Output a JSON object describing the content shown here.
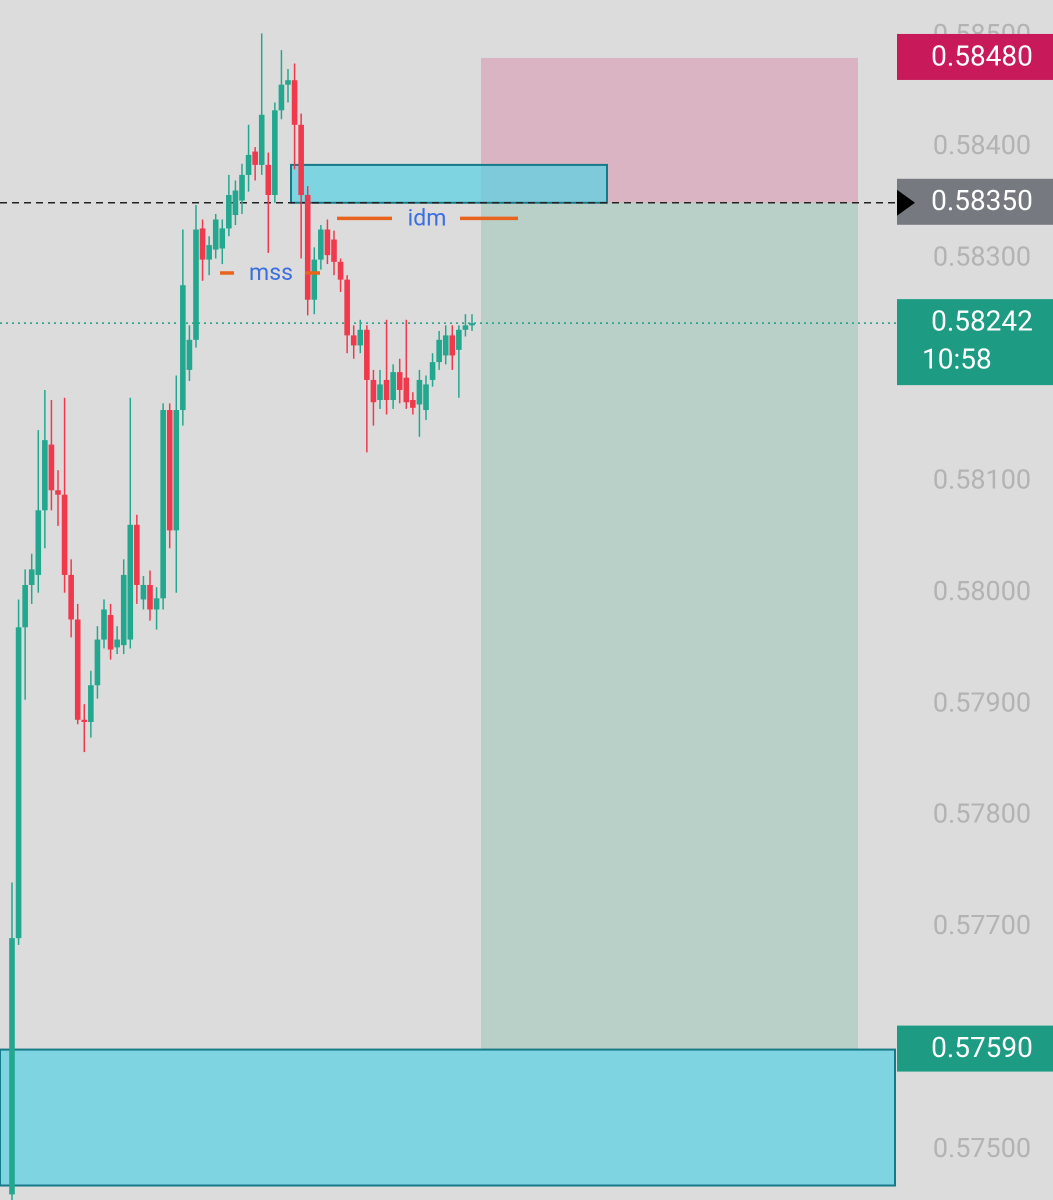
{
  "chart_data": {
    "type": "candlestick",
    "ylim": [
      0.57455,
      0.58532
    ],
    "yticks": [
      {
        "value": 0.585,
        "label": "0.58500"
      },
      {
        "value": 0.584,
        "label": "0.58400"
      },
      {
        "value": 0.583,
        "label": "0.58300"
      },
      {
        "value": 0.581,
        "label": "0.58100"
      },
      {
        "value": 0.58,
        "label": "0.58000"
      },
      {
        "value": 0.579,
        "label": "0.57900"
      },
      {
        "value": 0.578,
        "label": "0.57800"
      },
      {
        "value": 0.577,
        "label": "0.57700"
      },
      {
        "value": 0.575,
        "label": "0.57500"
      }
    ],
    "up_color": "#22a88f",
    "down_color": "#f0394d",
    "open": [
      0.5746,
      0.5769,
      0.57969,
      0.58007,
      0.58016,
      0.58074,
      0.58133,
      0.58092,
      0.58088,
      0.58016,
      0.57976,
      0.57886,
      0.57884,
      0.57917,
      0.57958,
      0.5798,
      0.57951,
      0.57953,
      0.57958,
      0.58061,
      0.57994,
      0.58007,
      0.57985,
      0.57995,
      0.58164,
      0.58056,
      0.58164,
      0.582,
      0.58227,
      0.58327,
      0.58299,
      0.58308,
      0.58309,
      0.58327,
      0.58339,
      0.58352,
      0.58375,
      0.58396,
      0.58384,
      0.58384,
      0.58357,
      0.58433,
      0.58456,
      0.5846,
      0.5842,
      0.58357,
      0.58263,
      0.58299,
      0.58326,
      0.58317,
      0.58297,
      0.58281,
      0.58231,
      0.58222,
      0.58236,
      0.58191,
      0.58173,
      0.58191,
      0.58173,
      0.58198,
      0.58193,
      0.58173,
      0.58169,
      0.58164,
      0.58191,
      0.58207,
      0.58213,
      0.58231,
      0.58218,
      0.58236,
      0.5824
    ],
    "high": [
      0.5774,
      0.57994,
      0.58021,
      0.58035,
      0.58146,
      0.58182,
      0.58173,
      0.5811,
      0.58175,
      0.5803,
      0.5799,
      0.579,
      0.5793,
      0.5797,
      0.57994,
      0.5799,
      0.5797,
      0.5803,
      0.58175,
      0.5807,
      0.58015,
      0.5802,
      0.58005,
      0.5817,
      0.5817,
      0.58195,
      0.58326,
      0.5824,
      0.58348,
      0.58335,
      0.5832,
      0.5834,
      0.58335,
      0.58375,
      0.5837,
      0.58385,
      0.5842,
      0.584,
      0.58502,
      0.58395,
      0.5844,
      0.58487,
      0.5847,
      0.58475,
      0.5843,
      0.58365,
      0.5831,
      0.5833,
      0.58335,
      0.58325,
      0.583,
      0.58285,
      0.5824,
      0.58245,
      0.5824,
      0.582,
      0.582,
      0.58245,
      0.58205,
      0.5821,
      0.58245,
      0.5818,
      0.582,
      0.58195,
      0.58215,
      0.58235,
      0.5824,
      0.5824,
      0.5824,
      0.5825,
      0.5825
    ],
    "low": [
      0.57455,
      0.57684,
      0.57904,
      0.5799,
      0.58,
      0.5804,
      0.58074,
      0.5806,
      0.58,
      0.5796,
      0.57882,
      0.57857,
      0.5787,
      0.57905,
      0.5795,
      0.5794,
      0.57945,
      0.57945,
      0.5795,
      0.5799,
      0.57985,
      0.57975,
      0.57967,
      0.57985,
      0.5804,
      0.58,
      0.5815,
      0.5819,
      0.5822,
      0.5828,
      0.58285,
      0.583,
      0.58295,
      0.5832,
      0.5833,
      0.5834,
      0.5836,
      0.5837,
      0.58375,
      0.58305,
      0.5835,
      0.58425,
      0.5844,
      0.5838,
      0.583,
      0.58249,
      0.5825,
      0.5829,
      0.58295,
      0.58285,
      0.5827,
      0.58215,
      0.5821,
      0.58215,
      0.58126,
      0.5815,
      0.58165,
      0.5816,
      0.58165,
      0.5817,
      0.58165,
      0.5816,
      0.5814,
      0.58155,
      0.58185,
      0.582,
      0.58205,
      0.582,
      0.58175,
      0.5823,
      0.58235
    ],
    "close": [
      0.5769,
      0.57969,
      0.58007,
      0.58021,
      0.58074,
      0.58137,
      0.58092,
      0.58088,
      0.58016,
      0.57976,
      0.57886,
      0.57884,
      0.57917,
      0.57958,
      0.57985,
      0.57949,
      0.57958,
      0.58016,
      0.58061,
      0.58007,
      0.58007,
      0.57985,
      0.57995,
      0.58164,
      0.58056,
      0.58164,
      0.58276,
      0.58227,
      0.58326,
      0.58299,
      0.58312,
      0.58335,
      0.58327,
      0.58357,
      0.58361,
      0.58375,
      0.58393,
      0.58384,
      0.58429,
      0.58357,
      0.58433,
      0.58456,
      0.5846,
      0.5842,
      0.58357,
      0.58263,
      0.58299,
      0.58326,
      0.58303,
      0.58297,
      0.58281,
      0.58231,
      0.58222,
      0.58236,
      0.58191,
      0.58171,
      0.58187,
      0.58173,
      0.58198,
      0.58182,
      0.58171,
      0.58166,
      0.58191,
      0.58187,
      0.58207,
      0.58227,
      0.58231,
      0.58213,
      0.58236,
      0.5824,
      0.58242
    ],
    "position": {
      "entry": 0.5835,
      "stop": 0.5848,
      "target": 0.5759
    },
    "boxes": [
      {
        "top": 0.58384,
        "bottom": 0.5835
      },
      {
        "top": 0.5759,
        "bottom": 0.57468
      }
    ],
    "annotations": [
      {
        "text": "mss",
        "level": 0.58287
      },
      {
        "text": "idm",
        "level": 0.58336
      }
    ],
    "price_labels": [
      {
        "value": 0.5848,
        "label": "0.58480",
        "color": "#c8195a"
      },
      {
        "value": 0.5835,
        "label": "0.58350",
        "color": "#767a80"
      },
      {
        "value": 0.58242,
        "label": "0.58242",
        "color": "#1d9c83",
        "countdown": "10:58"
      },
      {
        "value": 0.5759,
        "label": "0.57590",
        "color": "#1d9c83"
      }
    ]
  }
}
